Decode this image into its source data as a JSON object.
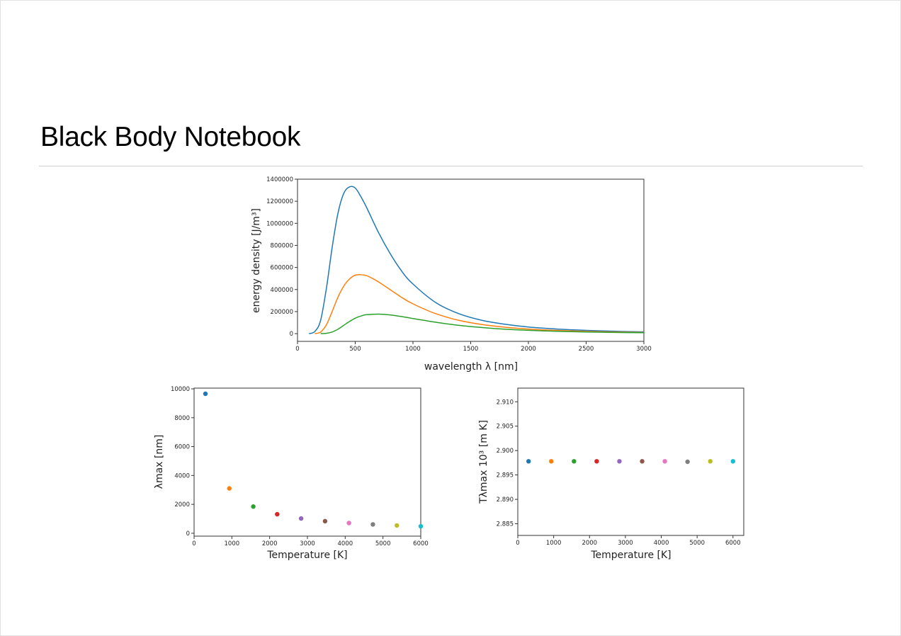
{
  "page": {
    "title": "Black Body Notebook"
  },
  "chart_data": [
    {
      "type": "line",
      "title": "",
      "xlabel": "wavelength λ [nm]",
      "ylabel": "energy density  [J/m³]",
      "xlim": [
        0,
        3000
      ],
      "ylim": [
        -70000,
        1400000
      ],
      "xticks": [
        0,
        500,
        1000,
        1500,
        2000,
        2500,
        3000
      ],
      "yticks": [
        0,
        200000,
        400000,
        600000,
        800000,
        1000000,
        1200000,
        1400000
      ],
      "grid": false,
      "series": [
        {
          "color": "#1f77b4",
          "x": [
            100,
            150,
            200,
            250,
            300,
            350,
            400,
            450,
            500,
            550,
            600,
            700,
            800,
            900,
            1000,
            1200,
            1400,
            1600,
            1800,
            2000,
            2200,
            2400,
            2600,
            2800,
            3000
          ],
          "values": [
            0,
            20000,
            120000,
            410000,
            780000,
            1090000,
            1270000,
            1330000,
            1320000,
            1240000,
            1140000,
            920000,
            730000,
            570000,
            450000,
            280000,
            180000,
            120000,
            85000,
            60000,
            45000,
            34000,
            26000,
            20000,
            16000
          ]
        },
        {
          "color": "#ff7f0e",
          "x": [
            150,
            200,
            250,
            300,
            350,
            400,
            450,
            500,
            550,
            600,
            650,
            700,
            800,
            900,
            1000,
            1200,
            1400,
            1600,
            1800,
            2000,
            2200,
            2400,
            2600,
            2800,
            3000
          ],
          "values": [
            0,
            15000,
            80000,
            200000,
            330000,
            430000,
            495000,
            530000,
            535000,
            525000,
            500000,
            470000,
            400000,
            330000,
            270000,
            180000,
            120000,
            82000,
            58000,
            42000,
            31000,
            24000,
            18000,
            14000,
            11000
          ]
        },
        {
          "color": "#2ca02c",
          "x": [
            200,
            250,
            300,
            350,
            400,
            450,
            500,
            550,
            600,
            700,
            800,
            900,
            1000,
            1100,
            1200,
            1400,
            1600,
            1800,
            2000,
            2200,
            2400,
            2600,
            2800,
            3000
          ],
          "values": [
            0,
            3000,
            15000,
            40000,
            75000,
            110000,
            140000,
            160000,
            172000,
            177000,
            170000,
            155000,
            137000,
            120000,
            103000,
            75000,
            55000,
            40000,
            30000,
            23000,
            17500,
            13500,
            10500,
            8500
          ]
        }
      ]
    },
    {
      "type": "scatter",
      "title": "",
      "xlabel": "Temperature [K]",
      "ylabel": "λmax  [nm]",
      "xlim": [
        0,
        6000
      ],
      "ylim": [
        -200,
        10050
      ],
      "xticks": [
        0,
        1000,
        2000,
        3000,
        4000,
        5000,
        6000
      ],
      "yticks": [
        0,
        2000,
        4000,
        6000,
        8000,
        10000
      ],
      "grid": false,
      "x": [
        300,
        933,
        1567,
        2200,
        2833,
        3467,
        4100,
        4733,
        5367,
        6000
      ],
      "values": [
        9660,
        3106,
        1849,
        1317,
        1023,
        836,
        707,
        612,
        540,
        483
      ],
      "colors": [
        "#1f77b4",
        "#ff7f0e",
        "#2ca02c",
        "#d62728",
        "#9467bd",
        "#8c564b",
        "#e377c2",
        "#7f7f7f",
        "#bcbd22",
        "#17becf"
      ]
    },
    {
      "type": "scatter",
      "title": "",
      "xlabel": "Temperature [K]",
      "ylabel": "Tλmax 10³ [m K]",
      "xlim": [
        0,
        6300
      ],
      "ylim": [
        2.8826,
        2.9128
      ],
      "xticks": [
        0,
        1000,
        2000,
        3000,
        4000,
        5000,
        6000
      ],
      "yticks": [
        "2.885",
        "2.890",
        "2.895",
        "2.900",
        "2.905",
        "2.910"
      ],
      "grid": false,
      "x": [
        300,
        933,
        1567,
        2200,
        2833,
        3467,
        4100,
        4733,
        5367,
        6000
      ],
      "values": [
        2.8978,
        2.8978,
        2.8978,
        2.8978,
        2.8978,
        2.8978,
        2.8978,
        2.8977,
        2.8978,
        2.8978
      ],
      "colors": [
        "#1f77b4",
        "#ff7f0e",
        "#2ca02c",
        "#d62728",
        "#9467bd",
        "#8c564b",
        "#e377c2",
        "#7f7f7f",
        "#bcbd22",
        "#17becf"
      ]
    }
  ]
}
